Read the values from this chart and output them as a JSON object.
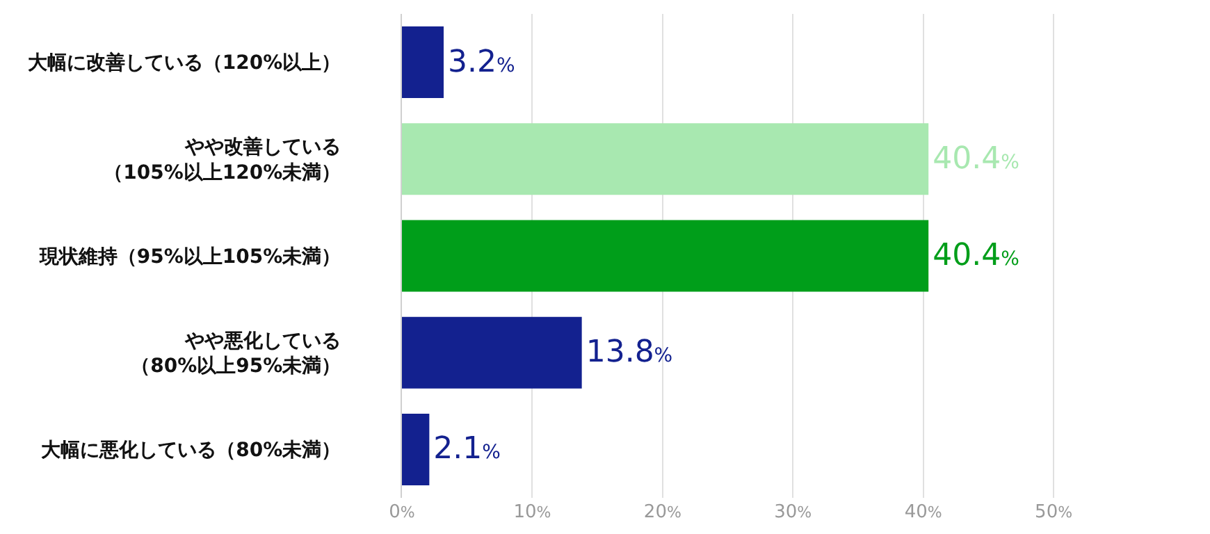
{
  "chart_data": {
    "type": "bar",
    "orientation": "horizontal",
    "categories": [
      "大幅に改善している（120%以上）",
      "やや改善している（105%以上120%未満）",
      "現状維持（95%以上105%未満）",
      "やや悪化している（80%以上95%未満）",
      "大幅に悪化している（80%未満）"
    ],
    "values": [
      3.2,
      40.4,
      40.4,
      13.8,
      2.1
    ],
    "colors": [
      "#13218f",
      "#a8e8b0",
      "#009e1a",
      "#13218f",
      "#13218f"
    ],
    "value_labels": [
      "3.2%",
      "40.4%",
      "40.4%",
      "13.8%",
      "2.1%"
    ],
    "xlim": [
      0,
      62
    ],
    "xticks": [
      {
        "value": 0,
        "label": "0%"
      },
      {
        "value": 10,
        "label": "10%"
      },
      {
        "value": 20,
        "label": "20%"
      },
      {
        "value": 30,
        "label": "30%"
      },
      {
        "value": 40,
        "label": "40%"
      },
      {
        "value": 50,
        "label": "50%"
      }
    ],
    "grid": "x",
    "legend": false
  }
}
